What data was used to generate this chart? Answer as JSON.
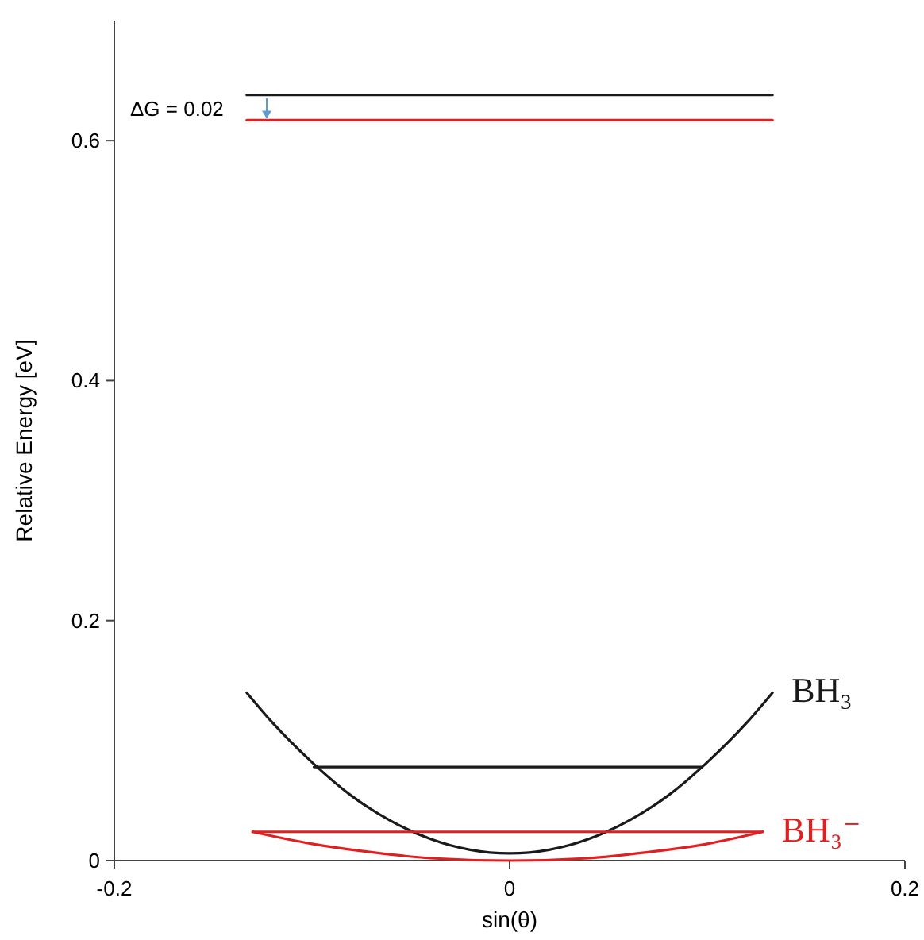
{
  "chart_data": {
    "type": "line",
    "xlabel": "sin(θ)",
    "ylabel": "Relative Energy [eV]",
    "xlim": [
      -0.2,
      0.2
    ],
    "xticks": [
      -0.2,
      0,
      0.2
    ],
    "ylim": [
      0,
      0.7
    ],
    "yticks": [
      0,
      0.2,
      0.4,
      0.6
    ],
    "grid": false,
    "marker": "none",
    "annotations": [
      "ΔG = 0.02"
    ],
    "series": [
      {
        "name": "BH₃",
        "color": "#1a1a1a",
        "x": [
          -0.133,
          -0.12,
          -0.1,
          -0.08,
          -0.06,
          -0.04,
          -0.02,
          0,
          0.02,
          0.04,
          0.06,
          0.08,
          0.1,
          0.12,
          0.133
        ],
        "values": [
          0.14,
          0.115,
          0.082,
          0.054,
          0.033,
          0.018,
          0.009,
          0.006,
          0.009,
          0.018,
          0.033,
          0.054,
          0.082,
          0.115,
          0.14
        ]
      },
      {
        "name": "BH₃⁻",
        "color": "#e02020",
        "x": [
          -0.13,
          -0.1,
          -0.07,
          -0.04,
          0,
          0.04,
          0.07,
          0.1,
          0.128
        ],
        "values": [
          0.024,
          0.014,
          0.007,
          0.002,
          0,
          0.002,
          0.007,
          0.014,
          0.024
        ]
      },
      {
        "color": "#1a1a1a",
        "x": [
          -0.099,
          0.097
        ],
        "values": [
          0.078,
          0.078
        ]
      },
      {
        "color": "#e02020",
        "x": [
          -0.13,
          0.128
        ],
        "values": [
          0.024,
          0.024
        ]
      },
      {
        "color": "#1a1a1a",
        "x": [
          -0.133,
          0.133
        ],
        "values": [
          0.638,
          0.638
        ]
      },
      {
        "color": "#e02020",
        "x": [
          -0.133,
          0.133
        ],
        "values": [
          0.617,
          0.617
        ]
      }
    ]
  }
}
